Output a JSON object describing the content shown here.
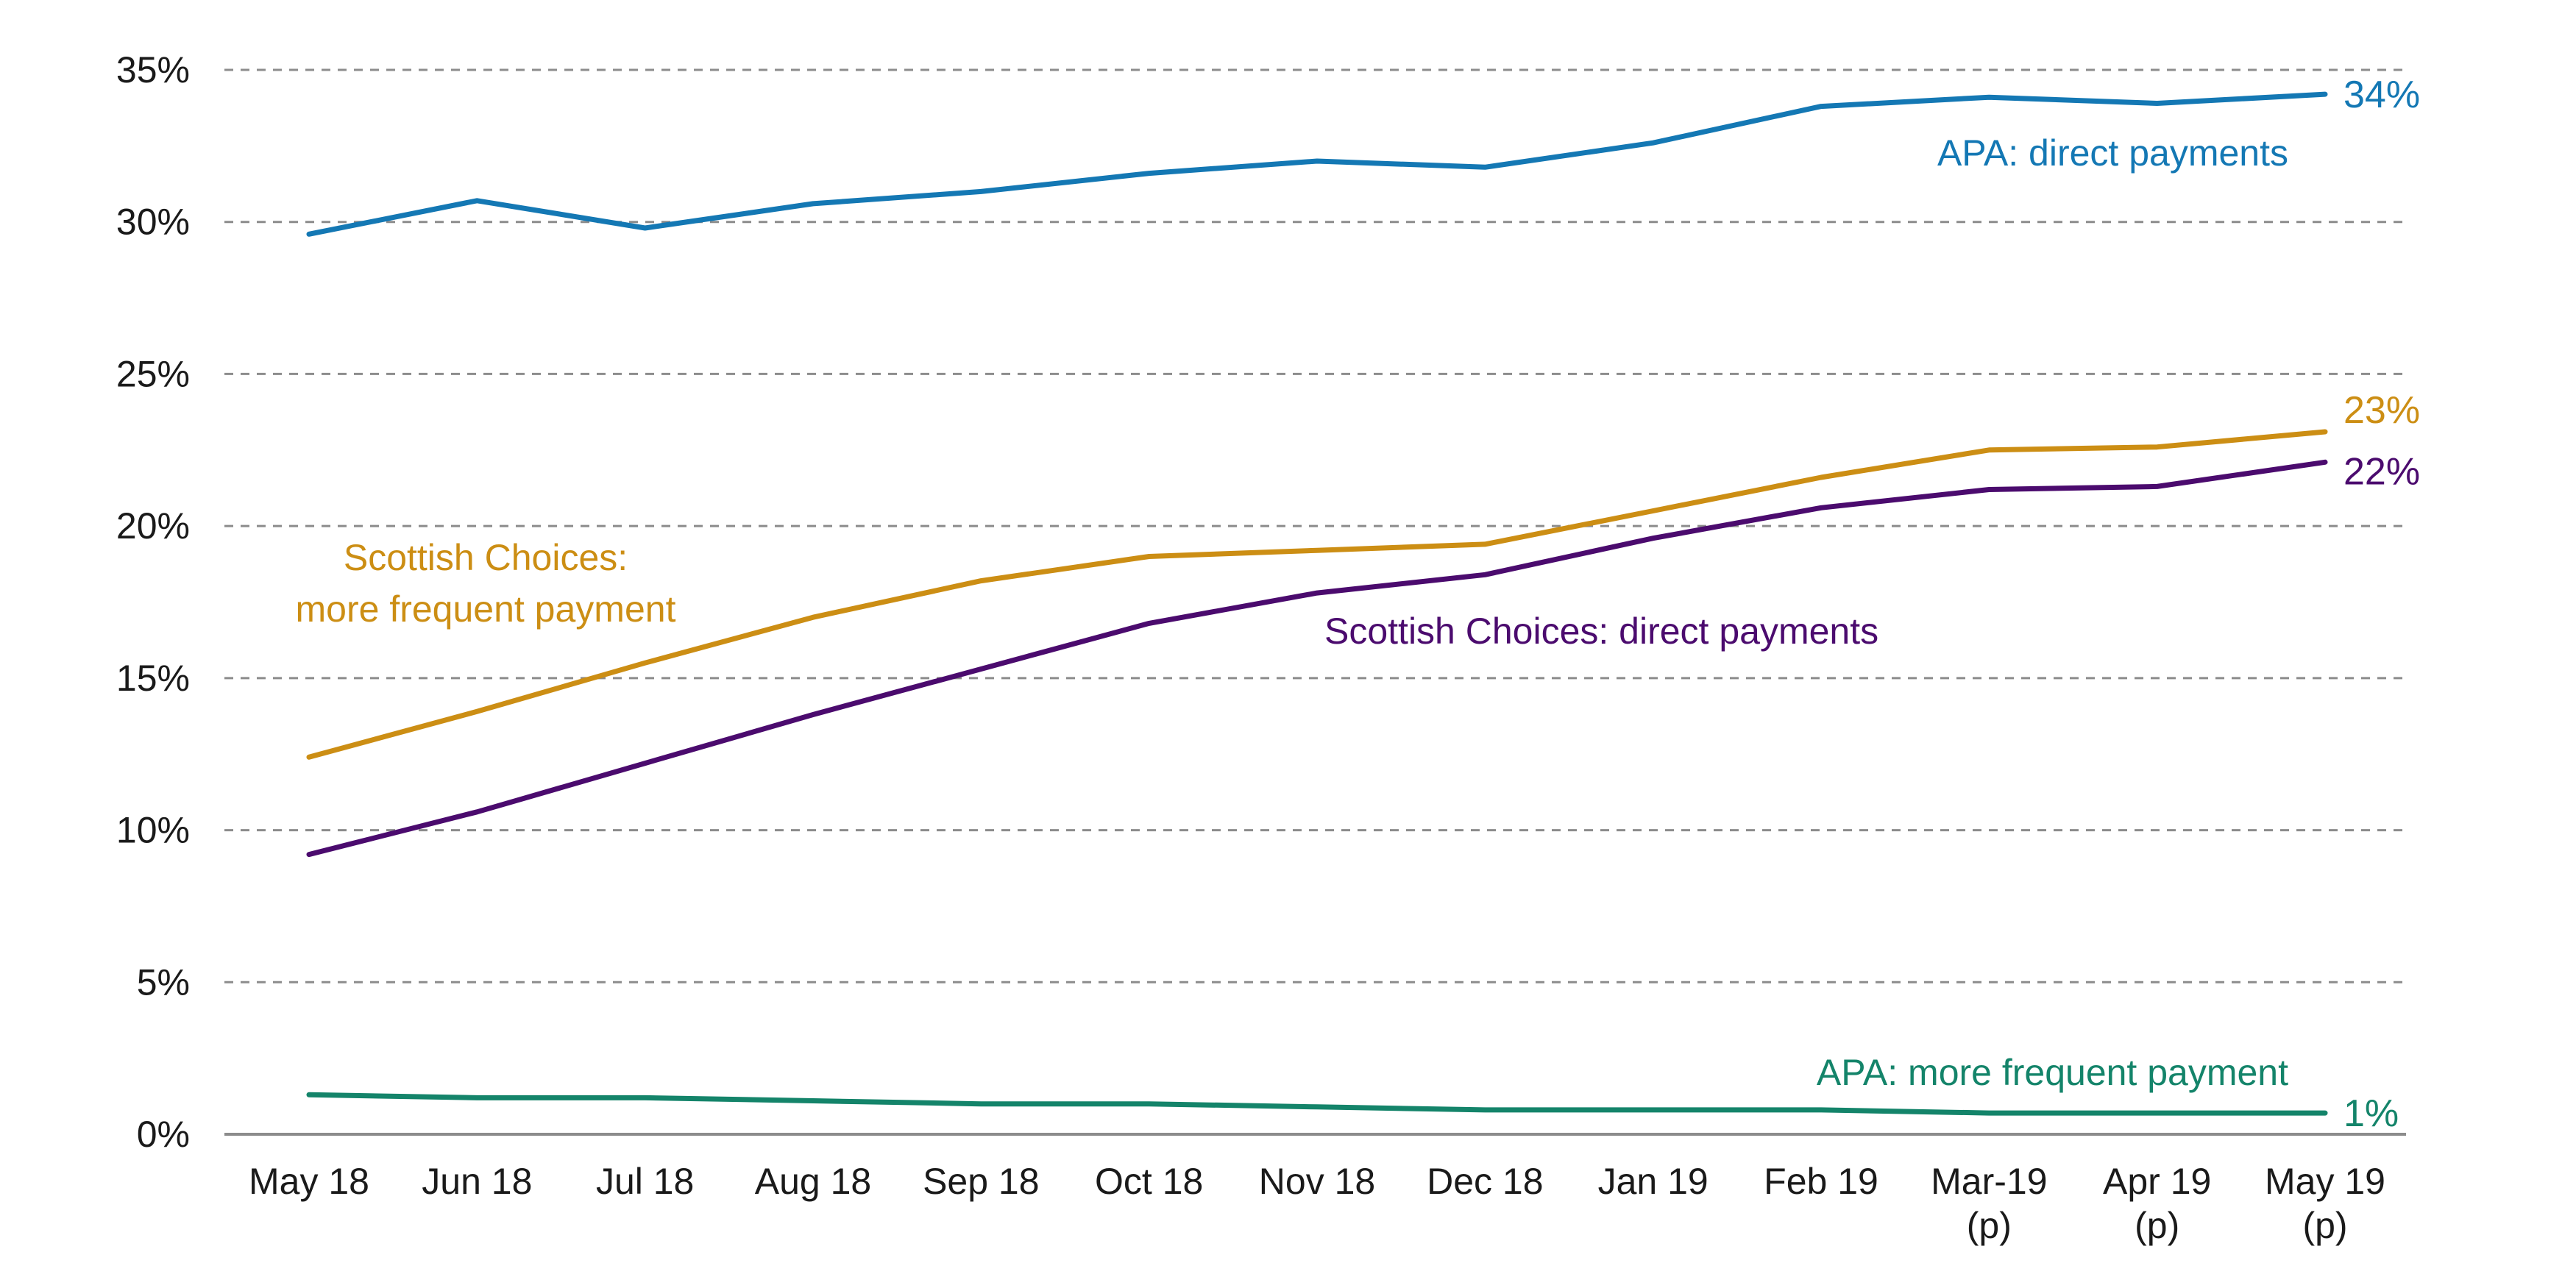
{
  "chart_data": {
    "type": "line",
    "title": "",
    "xlabel": "",
    "ylabel": "",
    "ylim": [
      0,
      35
    ],
    "y_ticks": [
      0,
      5,
      10,
      15,
      20,
      25,
      30,
      35
    ],
    "y_tick_labels": [
      "0%",
      "5%",
      "10%",
      "15%",
      "20%",
      "25%",
      "30%",
      "35%"
    ],
    "grid": true,
    "categories": [
      [
        "May 18"
      ],
      [
        "Jun 18"
      ],
      [
        "Jul 18"
      ],
      [
        "Aug 18"
      ],
      [
        "Sep 18"
      ],
      [
        "Oct 18"
      ],
      [
        "Nov 18"
      ],
      [
        "Dec 18"
      ],
      [
        "Jan 19"
      ],
      [
        "Feb 19"
      ],
      [
        "Mar-19",
        "(p)"
      ],
      [
        "Apr 19",
        "(p)"
      ],
      [
        "May 19",
        "(p)"
      ]
    ],
    "series": [
      {
        "name": "APA: direct payments",
        "label_lines": [
          "APA: direct payments"
        ],
        "end_label": "34%",
        "color": "#1478b4",
        "values": [
          29.6,
          30.7,
          29.8,
          30.6,
          31.0,
          31.6,
          32.0,
          31.8,
          32.6,
          33.8,
          34.1,
          33.9,
          34.2
        ]
      },
      {
        "name": "Scottish Choices: more frequent payment",
        "label_lines": [
          "Scottish Choices:",
          "more frequent payment"
        ],
        "end_label": "23%",
        "color": "#cc8e14",
        "values": [
          12.4,
          13.9,
          15.5,
          17.0,
          18.2,
          19.0,
          19.2,
          19.4,
          20.5,
          21.6,
          22.5,
          22.6,
          23.1
        ]
      },
      {
        "name": "Scottish Choices: direct payments",
        "label_lines": [
          "Scottish Choices: direct payments"
        ],
        "end_label": "22%",
        "color": "#4b0b6e",
        "values": [
          9.2,
          10.6,
          12.2,
          13.8,
          15.3,
          16.8,
          17.8,
          18.4,
          19.6,
          20.6,
          21.2,
          21.3,
          22.1
        ]
      },
      {
        "name": "APA: more frequent payment",
        "label_lines": [
          "APA: more frequent payment"
        ],
        "end_label": "1%",
        "color": "#14846a",
        "values": [
          1.3,
          1.2,
          1.2,
          1.1,
          1.0,
          1.0,
          0.9,
          0.8,
          0.8,
          0.8,
          0.7,
          0.7,
          0.7
        ]
      }
    ]
  }
}
